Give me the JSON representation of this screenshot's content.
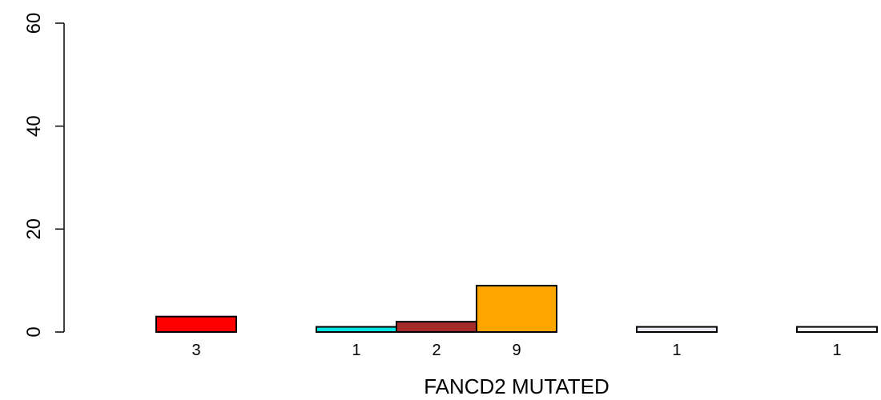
{
  "chart_data": {
    "type": "bar",
    "title": "",
    "xlabel": "FANCD2 MUTATED",
    "ylabel": "",
    "ylim": [
      0,
      60
    ],
    "yticks": [
      0,
      20,
      40,
      60
    ],
    "grid": false,
    "categories": [
      "",
      "",
      "",
      "",
      "",
      "",
      "",
      "",
      ""
    ],
    "values": [
      3,
      0,
      1,
      2,
      9,
      0,
      1,
      0,
      1
    ],
    "bar_labels": [
      "3",
      "",
      "1",
      "2",
      "9",
      "",
      "1",
      "",
      "1"
    ],
    "colors": [
      "#ff0000",
      "#ffffff",
      "#00e5e5",
      "#a52a2a",
      "#ffa500",
      "#ffffff",
      "#e8e8f0",
      "#ffffff",
      "#f5f5f5"
    ]
  }
}
